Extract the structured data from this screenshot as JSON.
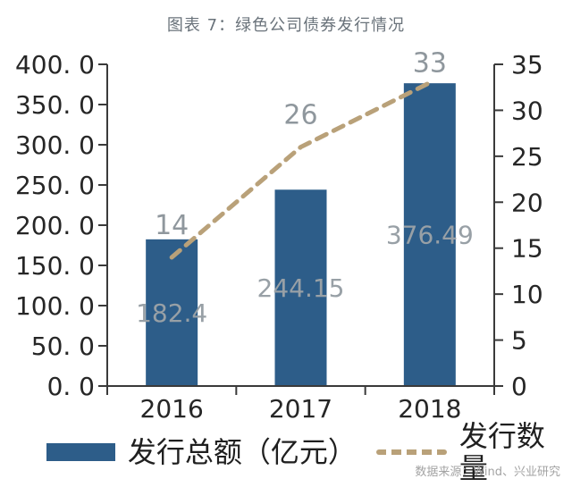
{
  "title": "图表 7：绿色公司债券发行情况",
  "source": "数据来源：Wind、兴业研究",
  "colors": {
    "bar": "#2d5d89",
    "line": "#b9a179",
    "data_label": "#98A0A6",
    "point_label": "#8f979d",
    "axis": "#3a3a3a",
    "tick_label": "#262626",
    "title": "#6a737b",
    "source": "#a3a3a3"
  },
  "legend": {
    "items": [
      {
        "label": "发行总额（亿元）",
        "swatch": "bar"
      },
      {
        "label": "发行数量",
        "swatch": "dashed-line"
      }
    ]
  },
  "chart_data": {
    "type": "bar+line",
    "title": "图表 7：绿色公司债券发行情况",
    "categories": [
      "2016",
      "2017",
      "2018"
    ],
    "series": [
      {
        "name": "发行总额（亿元）",
        "type": "bar",
        "axis": "left",
        "values": [
          182.4,
          244.15,
          376.49
        ],
        "data_labels": [
          "182.4",
          "244.15",
          "376.49"
        ],
        "color": "#2d5d89"
      },
      {
        "name": "发行数量",
        "type": "line",
        "style": "dashed",
        "axis": "right",
        "values": [
          14,
          26,
          33
        ],
        "data_labels": [
          "14",
          "26",
          "33"
        ],
        "color": "#b9a179"
      }
    ],
    "left_axis": {
      "min": 0,
      "max": 400,
      "step": 50,
      "tick_labels": [
        "400. 0",
        "350. 0",
        "300. 0",
        "250. 0",
        "200. 0",
        "150. 0",
        "100. 0",
        "50. 0",
        "0. 0"
      ]
    },
    "right_axis": {
      "min": 0,
      "max": 35,
      "step": 5,
      "tick_labels": [
        "35",
        "30",
        "25",
        "20",
        "15",
        "10",
        "5",
        "0"
      ]
    },
    "grid": false,
    "legend_position": "bottom",
    "source": "数据来源：Wind、兴业研究"
  }
}
